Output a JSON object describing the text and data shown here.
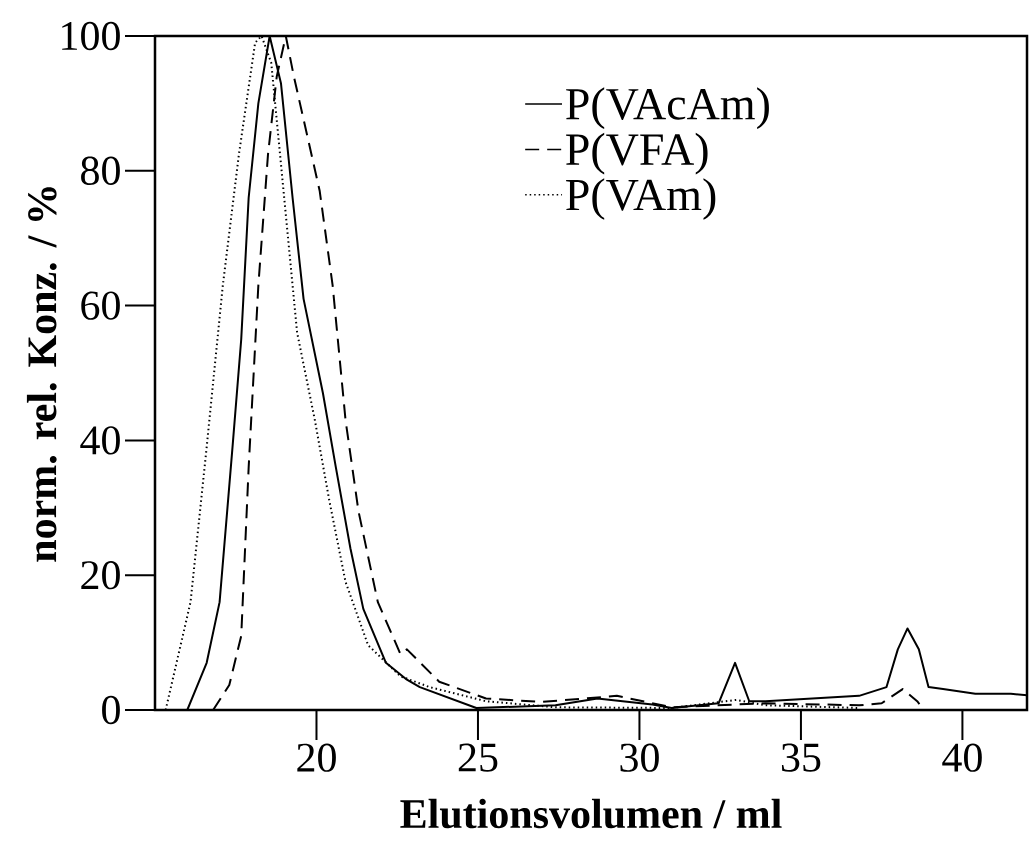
{
  "chart_data": {
    "type": "line",
    "xlabel": "Elutionsvolumen / ml",
    "ylabel": "norm.  rel. Konz. / %",
    "xlim": [
      15,
      42
    ],
    "ylim": [
      0,
      100
    ],
    "xticks": [
      20,
      25,
      30,
      35,
      40
    ],
    "yticks": [
      0,
      20,
      40,
      60,
      80,
      100
    ],
    "legend": "top right",
    "marker": "none",
    "grid": false,
    "series": [
      {
        "name": "P(VAcAm)",
        "color": "#000000",
        "line_style": "solid",
        "x": [
          16.0,
          16.6,
          17.0,
          17.4,
          17.67,
          17.9,
          18.2,
          18.55,
          18.9,
          19.26,
          19.6,
          20.2,
          20.6,
          21.05,
          21.45,
          22.15,
          22.8,
          23.2,
          24.95,
          27.4,
          28.7,
          30.4,
          31.0,
          32.45,
          32.96,
          33.4,
          33.9,
          36.8,
          37.65,
          38.0,
          38.3,
          38.65,
          38.95,
          39.4,
          40.4,
          41.5,
          42.0
        ],
        "values": [
          0,
          7,
          16,
          39,
          55,
          76,
          90,
          100,
          93,
          76,
          61,
          47,
          36,
          24,
          15,
          7,
          4.5,
          3.4,
          0.3,
          0.7,
          1.7,
          0.8,
          0.3,
          1.0,
          7.0,
          1.3,
          1.3,
          2.1,
          3.4,
          9,
          12.1,
          9,
          3.4,
          3.1,
          2.4,
          2.4,
          2.2
        ]
      },
      {
        "name": "P(VFA)",
        "color": "#000000",
        "line_style": "dashed",
        "x": [
          16.8,
          17.3,
          17.67,
          17.9,
          18.2,
          18.5,
          18.77,
          19.05,
          19.3,
          20.1,
          20.5,
          20.9,
          21.3,
          21.9,
          22.6,
          22.8,
          23.8,
          25.25,
          27.0,
          29.3,
          31.0,
          33.9,
          36.8,
          37.5,
          38.15,
          38.6,
          38.8
        ],
        "values": [
          0,
          3.7,
          11,
          36,
          63,
          82.5,
          94,
          100,
          94,
          77,
          63,
          43,
          29.5,
          16,
          8.3,
          9,
          4.2,
          1.7,
          1.2,
          2.1,
          0.4,
          1.0,
          0.7,
          1.0,
          3.1,
          1.3,
          0.1
        ]
      },
      {
        "name": "P(VAm)",
        "color": "#000000",
        "line_style": "dotted",
        "x": [
          15.33,
          16.1,
          16.6,
          17.1,
          17.6,
          18.1,
          18.3,
          18.6,
          19.0,
          19.4,
          19.95,
          20.4,
          20.9,
          21.6,
          22.6,
          23.5,
          25.25,
          27.4,
          31.0,
          33.0,
          33.9,
          36.8
        ],
        "values": [
          0,
          16,
          39,
          63,
          82.5,
          99,
          100,
          96,
          76,
          56,
          43,
          31,
          19,
          9.6,
          5,
          3.4,
          1.3,
          0.4,
          0.3,
          1.5,
          0.7,
          0.3
        ]
      }
    ]
  }
}
